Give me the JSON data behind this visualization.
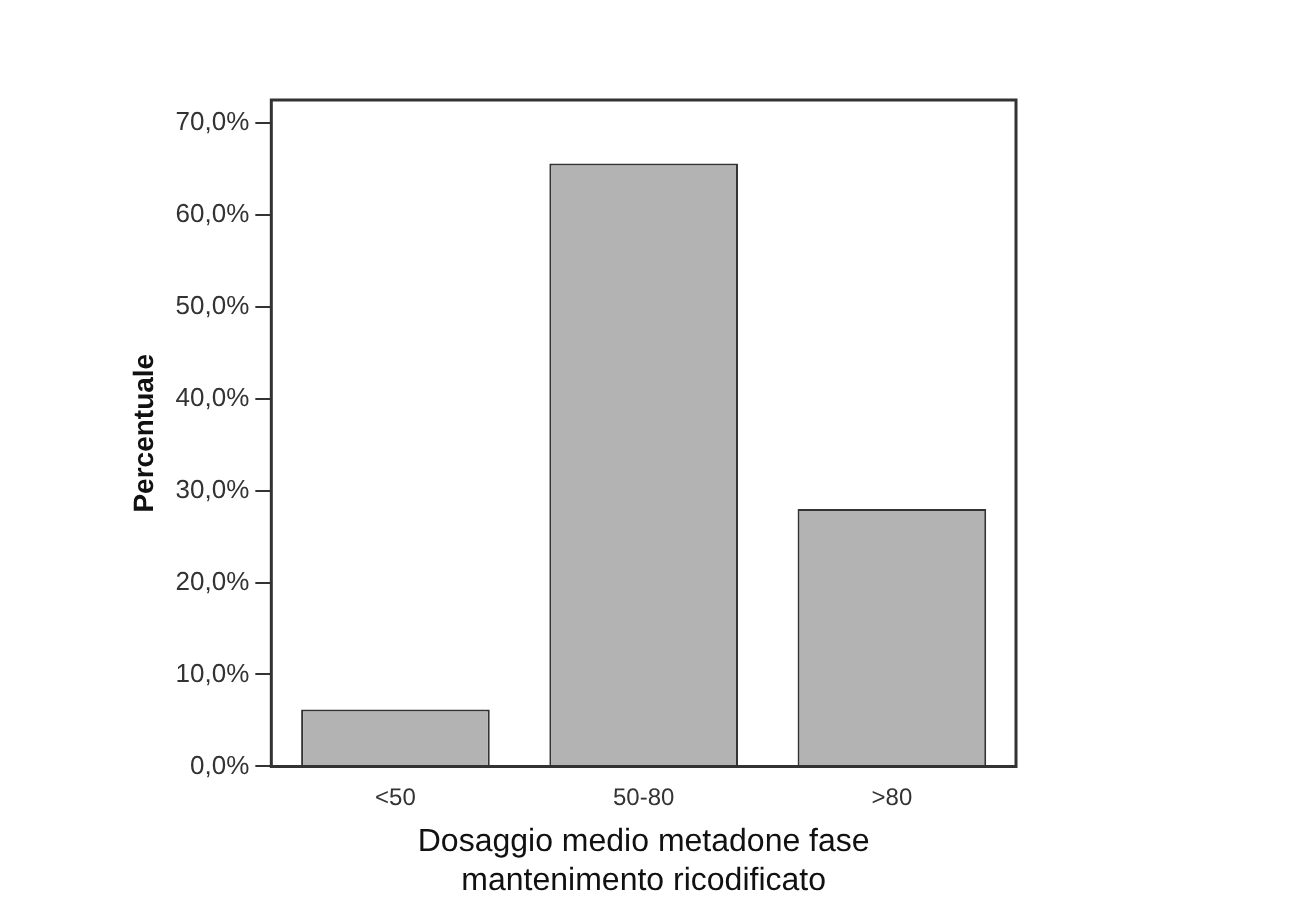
{
  "chart_data": {
    "type": "bar",
    "xlabel": "Dosaggio medio metadone fase\nmantenimento ricodificato",
    "ylabel": "Percentuale",
    "categories": [
      "<50",
      "50-80",
      ">80"
    ],
    "values": [
      6.2,
      65.6,
      28.0
    ],
    "color": "#b3b3b3",
    "ylim": [
      0,
      72.5
    ],
    "yticks": [
      {
        "value": 0,
        "label": "0,0%"
      },
      {
        "value": 10,
        "label": "10,0%"
      },
      {
        "value": 20,
        "label": "20,0%"
      },
      {
        "value": 30,
        "label": "30,0%"
      },
      {
        "value": 40,
        "label": "40,0%"
      },
      {
        "value": 50,
        "label": "50,0%"
      },
      {
        "value": 60,
        "label": "60,0%"
      },
      {
        "value": 70,
        "label": "70,0%"
      }
    ],
    "grid": false,
    "legend": false
  }
}
